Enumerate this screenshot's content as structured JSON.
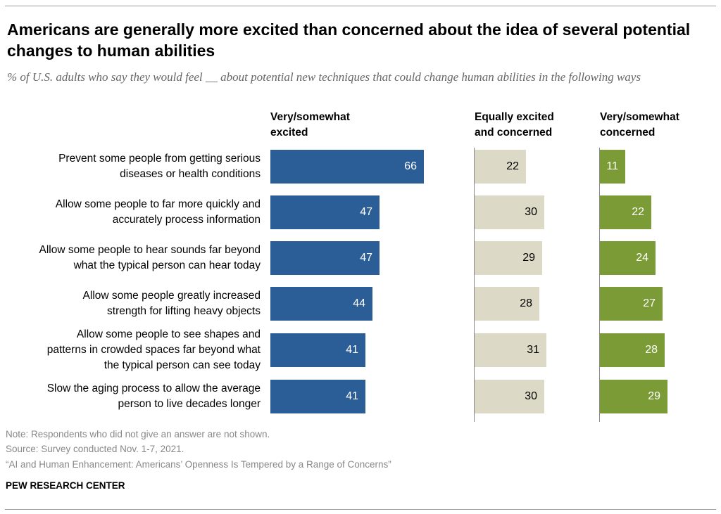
{
  "title": "Americans are generally more excited than concerned about the idea of several potential changes to human abilities",
  "subtitle": "% of U.S. adults who say they would feel __ about potential new techniques that could change human abilities in the following ways",
  "notes": {
    "note": "Note: Respondents who did not give an answer are not shown.",
    "source": "Source: Survey conducted Nov. 1-7, 2021.",
    "report": "“AI and Human Enhancement: Americans’ Openness Is Tempered by a Range of Concerns”"
  },
  "brand": "PEW RESEARCH CENTER",
  "colors": {
    "excited": "#2b5d97",
    "equal": "#dcdac6",
    "concerned": "#7a9b35"
  },
  "chart_data": {
    "type": "bar",
    "orientation": "horizontal",
    "categories": [
      "Prevent some people from getting serious\ndiseases or health conditions",
      "Allow some people to far more quickly and\naccurately process information",
      "Allow some people to hear sounds far beyond\nwhat the typical person can hear today",
      "Allow some people greatly increased\nstrength for lifting heavy objects",
      "Allow some people to see shapes and\npatterns in crowded spaces far beyond what\nthe typical person can see today",
      "Slow the aging process to allow the average\nperson to live decades longer"
    ],
    "series": [
      {
        "name": "Very/somewhat\nexcited",
        "values": [
          66,
          47,
          47,
          44,
          41,
          41
        ]
      },
      {
        "name": "Equally excited\nand concerned",
        "values": [
          22,
          30,
          29,
          28,
          31,
          30
        ]
      },
      {
        "name": "Very/somewhat\nconcerned",
        "values": [
          11,
          22,
          24,
          27,
          28,
          29
        ]
      }
    ],
    "grid": false,
    "data_labels": true
  }
}
